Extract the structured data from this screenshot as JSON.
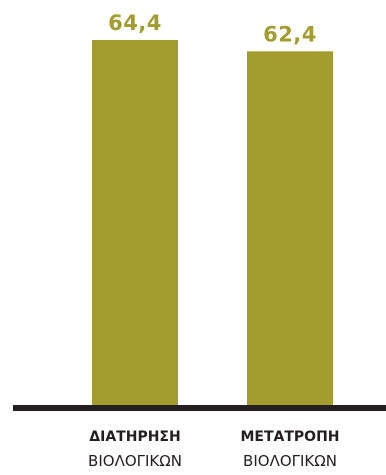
{
  "chart_data": {
    "type": "bar",
    "categories": [
      {
        "line1": "ΔΙΑΤΗΡΗΣΗ",
        "line2": "ΒΙΟΛΟΓΙΚΩΝ"
      },
      {
        "line1": "ΜΕΤΑΤΡΟΠΗ",
        "line2": "ΒΙΟΛΟΓΙΚΩΝ"
      }
    ],
    "values": [
      64.4,
      62.4
    ],
    "value_labels": [
      "64,4",
      "62,4"
    ],
    "ylim": [
      0,
      70
    ],
    "grid": false,
    "legend": "none"
  },
  "colors": {
    "bar": "#a39c2e",
    "axis": "#231f20",
    "category_text": "#231f20"
  }
}
